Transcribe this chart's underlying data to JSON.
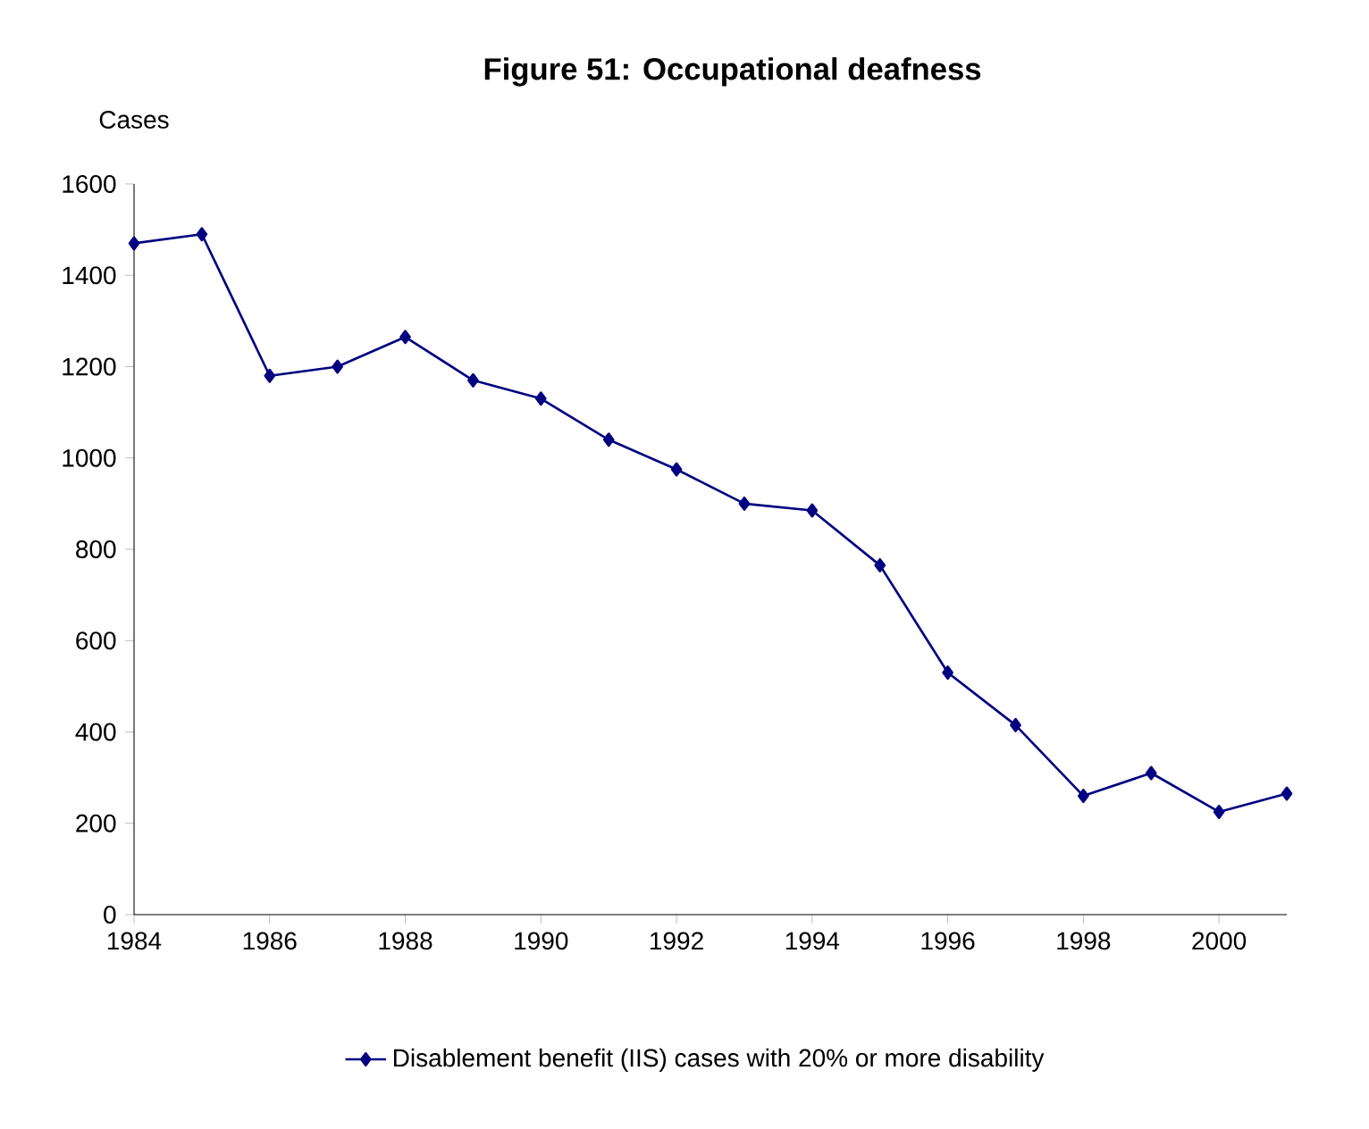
{
  "chart_data": {
    "type": "line",
    "title": "Figure 51: Occupational deafness",
    "ylabel": "Cases",
    "x": [
      1984,
      1985,
      1986,
      1987,
      1988,
      1989,
      1990,
      1991,
      1992,
      1993,
      1994,
      1995,
      1996,
      1997,
      1998,
      1999,
      2000,
      2001
    ],
    "series": [
      {
        "name": "Disablement benefit (IIS) cases with 20% or more disability",
        "color": "#000080",
        "values": [
          1470,
          1490,
          1180,
          1200,
          1265,
          1170,
          1130,
          1040,
          975,
          900,
          885,
          765,
          530,
          415,
          260,
          310,
          225,
          265
        ]
      }
    ],
    "xlim": [
      1984,
      2001
    ],
    "xticks": [
      1984,
      1986,
      1988,
      1990,
      1992,
      1994,
      1996,
      1998,
      2000
    ],
    "ylim": [
      0,
      1600
    ],
    "yticks": [
      0,
      200,
      400,
      600,
      800,
      1000,
      1200,
      1400,
      1600
    ],
    "grid": false,
    "legend": "bottom",
    "marker": "diamond",
    "line_style": "solid"
  }
}
